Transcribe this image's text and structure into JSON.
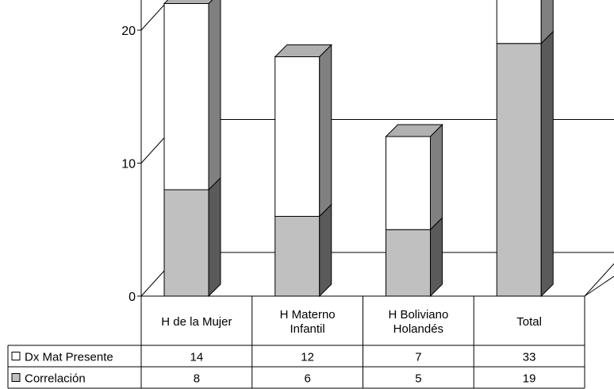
{
  "chart_data": {
    "type": "bar",
    "stacked": true,
    "three_d": true,
    "title": "",
    "xlabel": "",
    "ylabel": "",
    "ylim": [
      0,
      60
    ],
    "yticks": [
      0,
      10,
      20,
      30,
      40,
      50,
      60
    ],
    "grid": true,
    "legend_position": "data-table-left",
    "categories": [
      [
        "H de la Mujer"
      ],
      [
        "H Materno",
        "Infantil"
      ],
      [
        "H Boliviano",
        "Holandés"
      ],
      [
        "Total"
      ]
    ],
    "series": [
      {
        "name": "Correlación",
        "values": [
          8,
          6,
          5,
          19
        ],
        "color": "#c0c0c0"
      },
      {
        "name": "Dx Mat Presente",
        "values": [
          14,
          12,
          7,
          33
        ],
        "color": "#ffffff"
      }
    ]
  }
}
